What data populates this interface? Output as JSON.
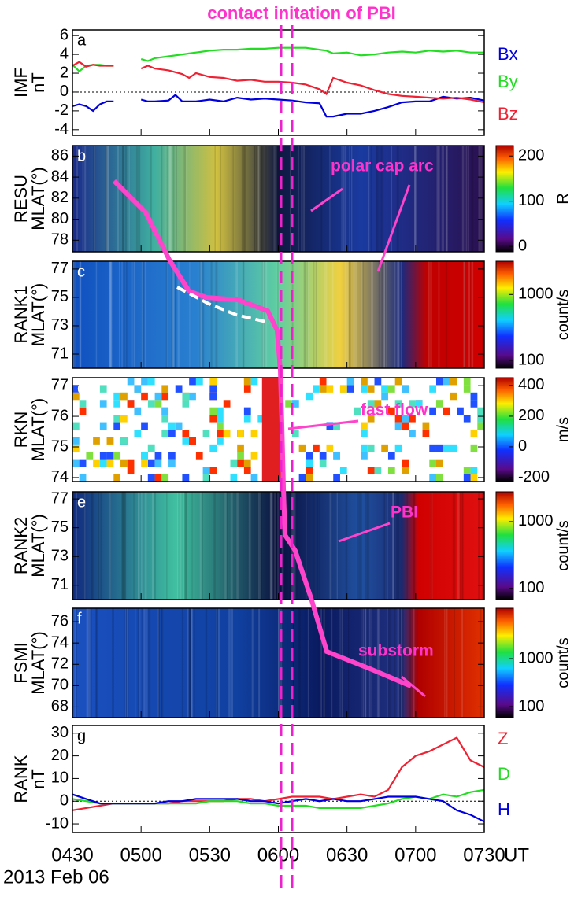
{
  "title": "contact initation of PBI",
  "date": "2013 Feb 06",
  "chart_data": [
    {
      "type": "line",
      "panel_label": "a",
      "ylabel": "IMF",
      "ylabel2": "nT",
      "zero_line": true,
      "xlim": [
        4.5,
        7.5
      ],
      "ylim": [
        -4.6,
        6.6
      ],
      "yticks": [
        6,
        4,
        2,
        0,
        -2,
        -4
      ],
      "x": [
        4.5,
        4.55,
        4.6,
        4.65,
        4.7,
        4.75,
        4.8,
        4.9,
        5.0,
        5.05,
        5.1,
        5.2,
        5.25,
        5.3,
        5.35,
        5.4,
        5.5,
        5.6,
        5.7,
        5.8,
        5.9,
        6.0,
        6.1,
        6.2,
        6.3,
        6.35,
        6.4,
        6.5,
        6.6,
        6.7,
        6.8,
        6.9,
        7.0,
        7.1,
        7.2,
        7.3,
        7.4,
        7.5
      ],
      "series": [
        {
          "name": "Bx",
          "color": "#0000dd",
          "values": [
            -1.5,
            -1.3,
            -1.5,
            -2.0,
            -1.3,
            -1.0,
            -1.0,
            null,
            -0.8,
            -1.0,
            -1.0,
            -0.9,
            -0.3,
            -1.0,
            -1.0,
            -1.0,
            -0.8,
            -1.0,
            -0.6,
            -0.8,
            -0.7,
            -0.8,
            -0.9,
            -1.1,
            -1.2,
            -2.6,
            -2.6,
            -2.3,
            -2.3,
            -2.0,
            -1.6,
            -1.1,
            -1.0,
            -1.0,
            -0.5,
            -0.7,
            -0.6,
            -0.9
          ]
        },
        {
          "name": "By",
          "color": "#22dd22",
          "values": [
            2.9,
            2.2,
            2.8,
            2.9,
            2.9,
            2.8,
            2.8,
            null,
            3.5,
            3.3,
            3.6,
            3.8,
            3.9,
            4.0,
            4.1,
            4.2,
            4.4,
            4.5,
            4.5,
            4.6,
            4.6,
            4.7,
            4.7,
            4.7,
            4.5,
            4.4,
            4.1,
            4.2,
            3.9,
            4.0,
            4.2,
            4.3,
            4.2,
            4.4,
            4.3,
            4.4,
            4.2,
            4.2
          ]
        },
        {
          "name": "Bz",
          "color": "#ee2233",
          "values": [
            2.8,
            3.2,
            2.7,
            2.9,
            2.8,
            2.8,
            2.8,
            null,
            2.5,
            2.8,
            2.5,
            2.3,
            2.1,
            1.9,
            1.5,
            2.0,
            1.6,
            1.5,
            1.2,
            1.3,
            1.1,
            1.1,
            1.0,
            0.8,
            0.3,
            -0.2,
            1.5,
            1.0,
            0.7,
            0.2,
            -0.2,
            -0.4,
            -0.5,
            -0.6,
            -0.7,
            -0.6,
            -0.8,
            -1.1
          ]
        }
      ]
    },
    {
      "type": "keogram",
      "panel_label": "b",
      "ylabel": "RESU",
      "ylabel2": "MLAT(°)",
      "xlim": [
        4.5,
        7.5
      ],
      "ylim": [
        76.9,
        87
      ],
      "yticks": [
        86,
        84,
        82,
        80,
        78
      ],
      "colorbar": {
        "lim": [
          -12,
          223
        ],
        "ticks": [
          200,
          100,
          0
        ],
        "log": false,
        "label": "R"
      },
      "annotations": [
        "polar cap arc"
      ]
    },
    {
      "type": "keogram",
      "panel_label": "c",
      "ylabel": "RANK1",
      "ylabel2": "MLAT(°)",
      "xlim": [
        4.5,
        7.5
      ],
      "ylim": [
        70.0,
        77.55
      ],
      "yticks": [
        77,
        75,
        73,
        71
      ],
      "colorbar": {
        "lim": [
          76,
          3200
        ],
        "ticks": [
          1000,
          100
        ],
        "log": true,
        "label": "count/s"
      }
    },
    {
      "type": "keogram",
      "panel_label": "d",
      "ylabel": "RKN",
      "ylabel2": "MLAT(°)",
      "xlim": [
        4.5,
        7.5
      ],
      "ylim": [
        73.87,
        77.26
      ],
      "yticks": [
        77,
        76,
        75,
        74
      ],
      "colorbar": {
        "lim": [
          -226,
          451
        ],
        "ticks": [
          400,
          200,
          0,
          -200
        ],
        "log": false,
        "label": "m/s"
      },
      "annotations": [
        "fast flow"
      ]
    },
    {
      "type": "keogram",
      "panel_label": "e",
      "ylabel": "RANK2",
      "ylabel2": "MLAT(°)",
      "xlim": [
        4.5,
        7.5
      ],
      "ylim": [
        70.0,
        77.5
      ],
      "yticks": [
        77,
        75,
        73,
        71
      ],
      "colorbar": {
        "lim": [
          68,
          2800
        ],
        "ticks": [
          1000,
          100
        ],
        "log": true,
        "label": "count/s"
      },
      "annotations": [
        "PBI"
      ]
    },
    {
      "type": "keogram",
      "panel_label": "f",
      "ylabel": "FSMI",
      "ylabel2": "MLAT(°)",
      "xlim": [
        4.5,
        7.5
      ],
      "ylim": [
        67.0,
        77.26
      ],
      "yticks": [
        76,
        74,
        72,
        70,
        68
      ],
      "colorbar": {
        "lim": [
          59,
          11200
        ],
        "ticks": [
          1000,
          100
        ],
        "log": true,
        "label": "count/s"
      },
      "annotations": [
        "substorm"
      ]
    },
    {
      "type": "line",
      "panel_label": "g",
      "ylabel": "RANK",
      "ylabel2": "nT",
      "zero_line": true,
      "xlim": [
        4.5,
        7.5
      ],
      "ylim": [
        -13.8,
        33.4
      ],
      "yticks": [
        30,
        20,
        10,
        0,
        -10
      ],
      "xticks": [
        {
          "value": 4.5,
          "label": "0430"
        },
        {
          "value": 5.0,
          "label": "0500"
        },
        {
          "value": 5.5,
          "label": "0530"
        },
        {
          "value": 6.0,
          "label": "0600"
        },
        {
          "value": 6.5,
          "label": "0630"
        },
        {
          "value": 7.0,
          "label": "0700"
        },
        {
          "value": 7.5,
          "label": "0730"
        }
      ],
      "xlabel": "UT",
      "x": [
        4.5,
        4.6,
        4.7,
        4.8,
        4.9,
        5.0,
        5.1,
        5.2,
        5.3,
        5.4,
        5.5,
        5.6,
        5.7,
        5.8,
        5.9,
        6.0,
        6.1,
        6.2,
        6.3,
        6.4,
        6.5,
        6.6,
        6.7,
        6.8,
        6.9,
        7.0,
        7.1,
        7.2,
        7.3,
        7.4,
        7.5
      ],
      "series": [
        {
          "name": "Z",
          "color": "#ee2233",
          "values": [
            -4,
            -3,
            -2,
            -1,
            -1,
            -1,
            -1,
            -1,
            0,
            0,
            0,
            0,
            1,
            1,
            0,
            1,
            2,
            2,
            2,
            1,
            2,
            3,
            2,
            5,
            15,
            20,
            22,
            25,
            28,
            18,
            15
          ]
        },
        {
          "name": "D",
          "color": "#22dd22",
          "values": [
            1,
            0,
            -1,
            -1,
            -1,
            -1,
            -1,
            -1,
            -1,
            -1,
            0,
            0,
            0,
            -1,
            -1,
            -2,
            -2,
            -2,
            -3,
            -3,
            -3,
            -3,
            -2,
            -1,
            1,
            2,
            1,
            3,
            2,
            4,
            5
          ]
        },
        {
          "name": "H",
          "color": "#0000dd",
          "values": [
            3,
            1,
            -1,
            -1,
            -1,
            -1,
            -1,
            0,
            0,
            1,
            1,
            1,
            1,
            0,
            0,
            -1,
            0,
            1,
            0,
            1,
            0,
            0,
            1,
            2,
            2,
            2,
            1,
            0,
            -4,
            -6,
            -9
          ]
        }
      ]
    }
  ]
}
